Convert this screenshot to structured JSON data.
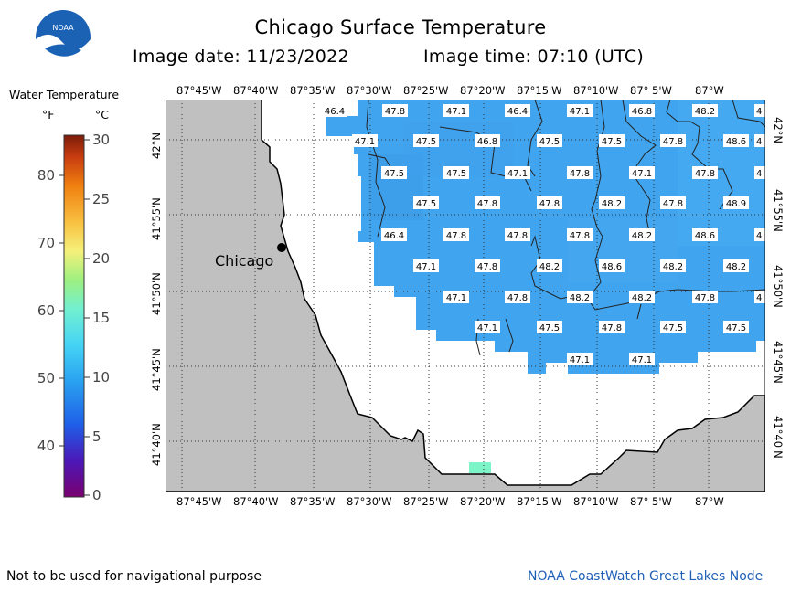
{
  "title": "Chicago Surface Temperature",
  "image_date_label": "Image date: 11/23/2022",
  "image_time_label": "Image time: 07:10 (UTC)",
  "legend": {
    "title": "Water Temperature",
    "unit_f": "°F",
    "unit_c": "°C",
    "f_ticks": [
      "80",
      "70",
      "60",
      "50",
      "40"
    ],
    "c_ticks": [
      "30",
      "25",
      "20",
      "15",
      "10",
      "5",
      "0"
    ]
  },
  "x_axis_labels": [
    "87°45'W",
    "87°40'W",
    "87°35'W",
    "87°30'W",
    "87°25'W",
    "87°20'W",
    "87°15'W",
    "87°10'W",
    "87° 5'W",
    "87°W"
  ],
  "y_axis_labels": [
    "42°N",
    "41°55'N",
    "41°50'N",
    "41°45'N",
    "41°40'N"
  ],
  "city": {
    "name": "Chicago"
  },
  "temperature_values": [
    [
      "46.4",
      "47.8",
      "47.1",
      "46.4",
      "47.1",
      "46.8",
      "48.2",
      "4"
    ],
    [
      "47.1",
      "47.5",
      "46.8",
      "47.5",
      "47.5",
      "47.8",
      "48.6",
      "4"
    ],
    [
      "47.5",
      "47.5",
      "47.1",
      "47.8",
      "47.1",
      "47.8",
      "4"
    ],
    [
      "47.5",
      "47.8",
      "47.8",
      "48.2",
      "47.8",
      "48.9"
    ],
    [
      "46.4",
      "47.8",
      "47.8",
      "47.8",
      "48.2",
      "48.6",
      "4"
    ],
    [
      "47.1",
      "47.8",
      "48.2",
      "48.6",
      "48.2",
      "48.2"
    ],
    [
      "47.1",
      "47.8",
      "48.2",
      "48.2",
      "47.8",
      "4"
    ],
    [
      "47.1",
      "47.5",
      "47.8",
      "47.5",
      "47.5"
    ],
    [
      "47.1",
      "47.1"
    ]
  ],
  "footer_left": "Not to be used for navigational purpose",
  "footer_right": "NOAA CoastWatch Great Lakes Node",
  "logo_text": "NOAA",
  "colors": {
    "land": "#c0c0c0",
    "water_main": "#41a4ee",
    "water_dark": "#3c9be8",
    "warm_spot": "#7ef5c8",
    "footer_link": "#1f5fb6"
  }
}
